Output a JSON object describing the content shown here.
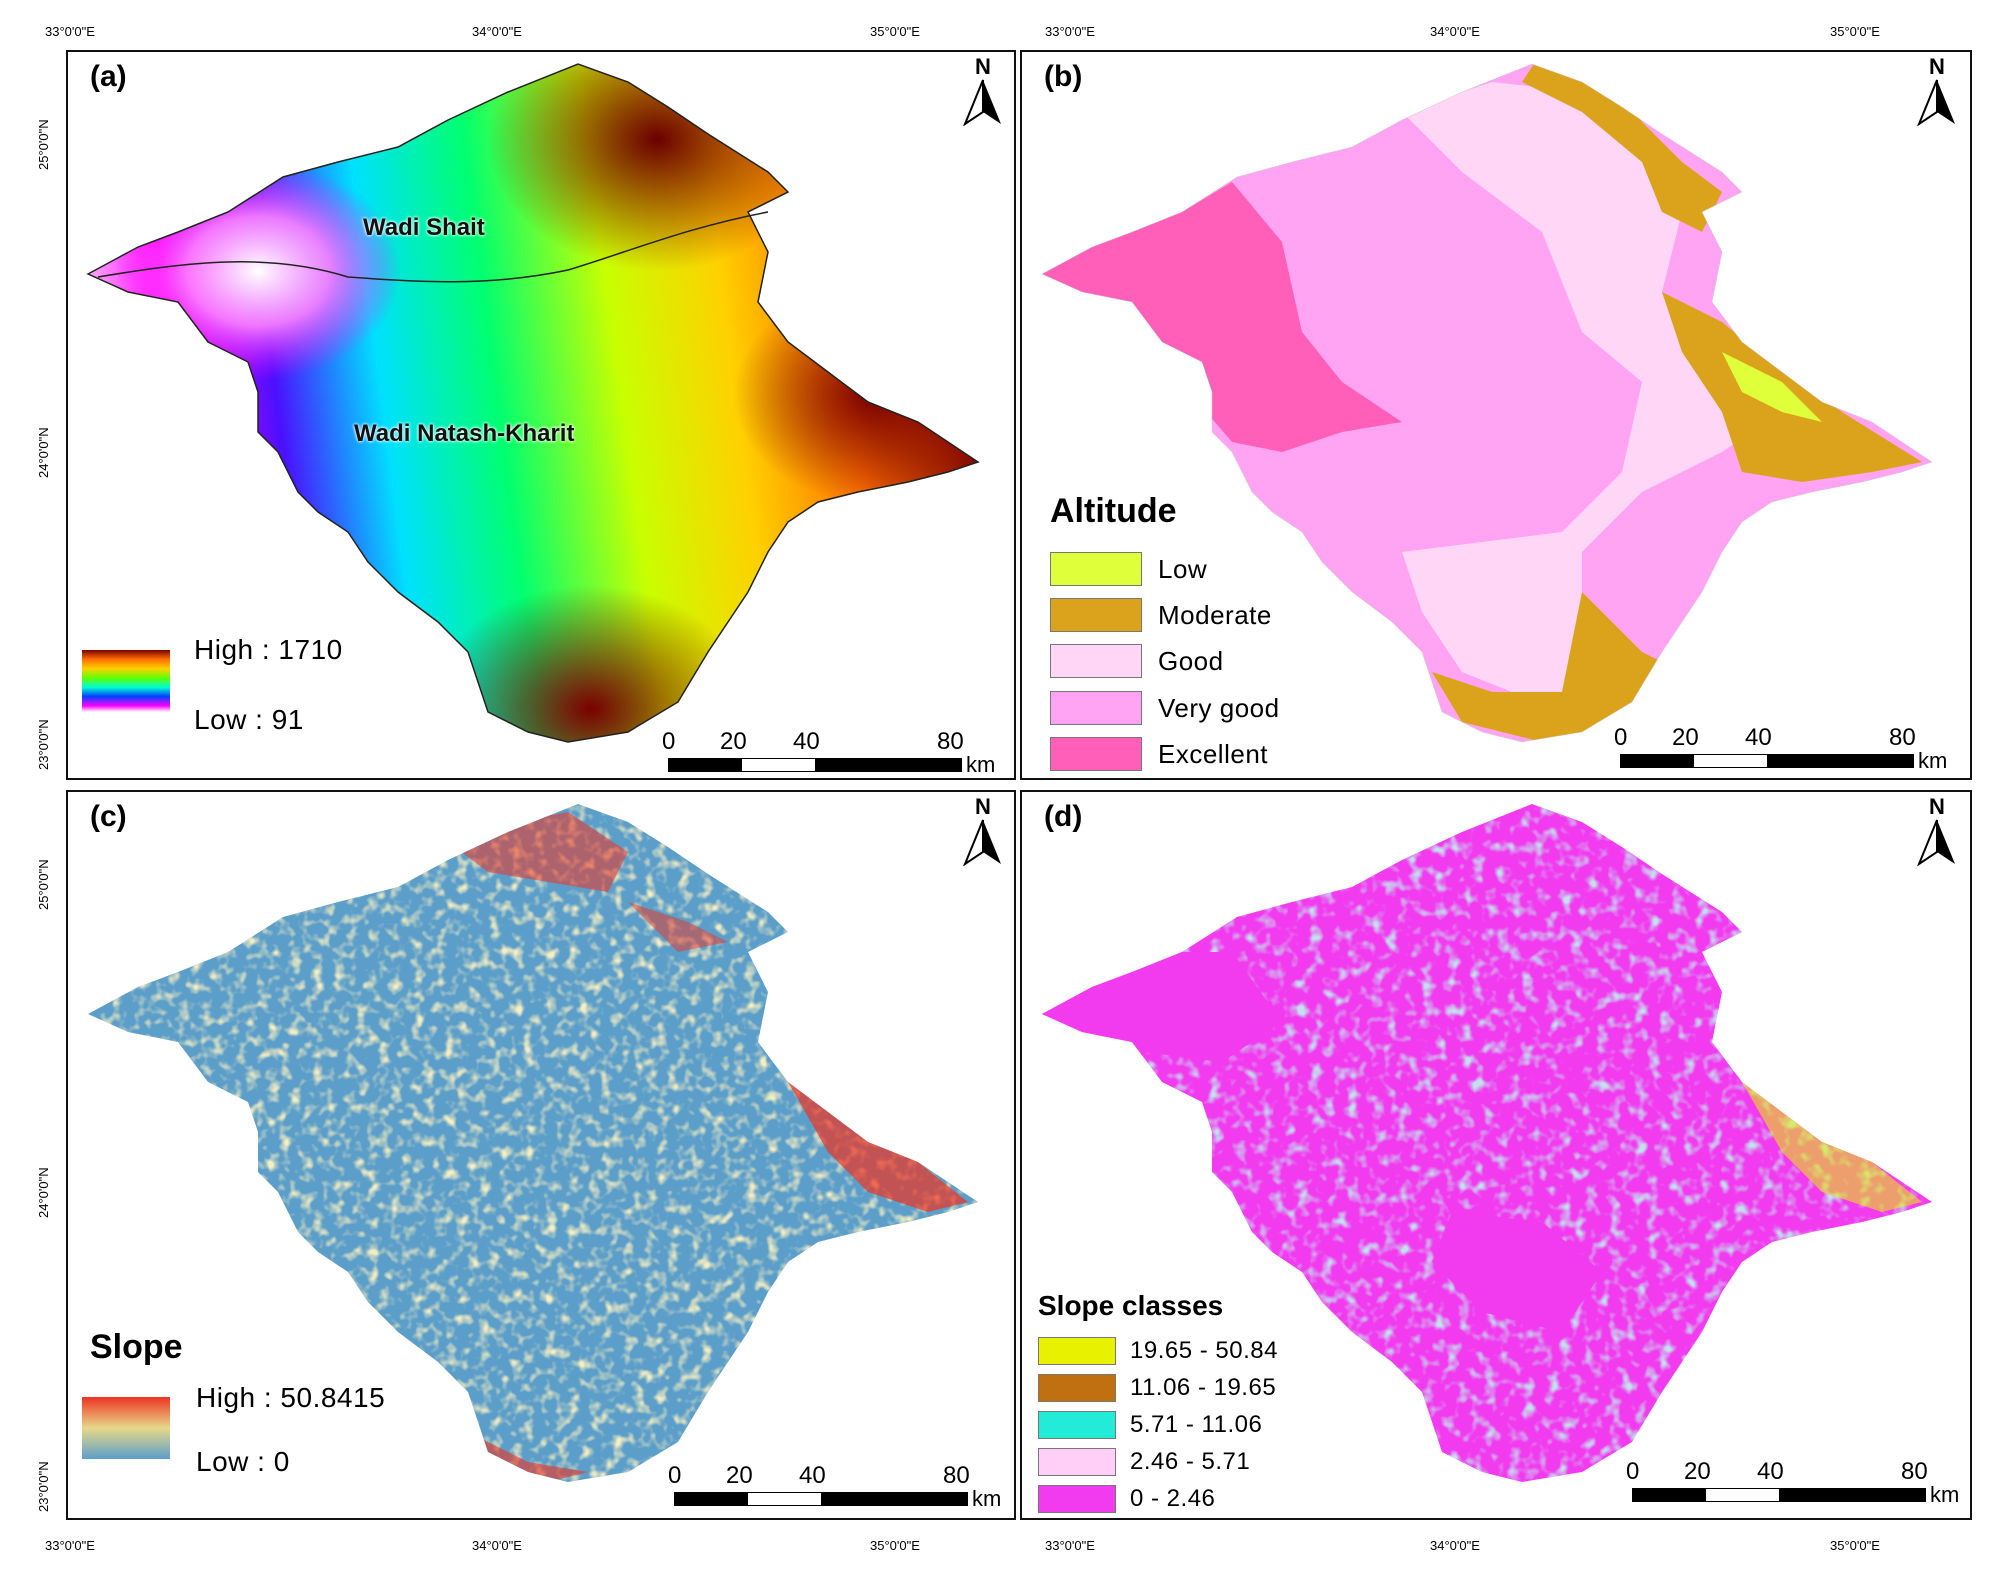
{
  "panels": {
    "a": {
      "label": "(a)"
    },
    "b": {
      "label": "(b)"
    },
    "c": {
      "label": "(c)"
    },
    "d": {
      "label": "(d)"
    }
  },
  "north_label": "N",
  "coords": {
    "lon": [
      "33°0'0\"E",
      "34°0'0\"E",
      "35°0'0\"E"
    ],
    "lat": [
      "25°0'0\"N",
      "24°0'0\"N",
      "23°0'0\"N"
    ]
  },
  "scalebar": {
    "ticks": [
      "0",
      "20",
      "40",
      "80"
    ],
    "unit": "km"
  },
  "map_a": {
    "region_labels": {
      "wadi_shait": "Wadi Shait",
      "wadi_natash": "Wadi Natash-Kharit"
    },
    "legend": {
      "high": "High : 1710",
      "low": "Low : 91"
    },
    "colors": [
      "#ffffff",
      "#ff00ff",
      "#6000ff",
      "#0040ff",
      "#00e0ff",
      "#00ff70",
      "#c8ff00",
      "#ffd000",
      "#ff7000",
      "#7a0000"
    ]
  },
  "map_b": {
    "legend_title": "Altitude",
    "legend_items": [
      {
        "label": "Low",
        "color": "#dfff3a"
      },
      {
        "label": "Moderate",
        "color": "#dba21c"
      },
      {
        "label": "Good",
        "color": "#ffd6f6"
      },
      {
        "label": "Very good",
        "color": "#ffa3f2"
      },
      {
        "label": "Excellent",
        "color": "#ff5fb8"
      }
    ]
  },
  "map_c": {
    "legend_title": "Slope",
    "legend": {
      "high": "High : 50.8415",
      "low": "Low : 0"
    },
    "colors": {
      "low": "#5b9ec9",
      "mid": "#e8d88a",
      "high": "#ee3322"
    }
  },
  "map_d": {
    "legend_title": "Slope classes",
    "legend_items": [
      {
        "label": "19.65 - 50.84",
        "color": "#e8f200"
      },
      {
        "label": "11.06 - 19.65",
        "color": "#c07010"
      },
      {
        "label": "5.71 - 11.06",
        "color": "#22ecd8"
      },
      {
        "label": "2.46 - 5.71",
        "color": "#ffcff7"
      },
      {
        "label": "0 - 2.46",
        "color": "#f23aef"
      }
    ]
  }
}
